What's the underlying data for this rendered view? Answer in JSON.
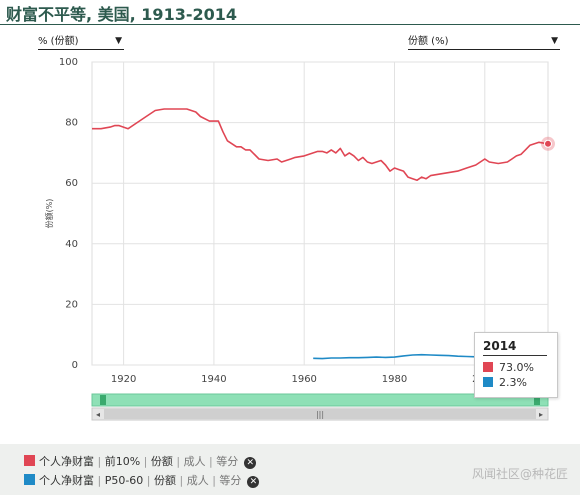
{
  "header": {
    "title": "财富不平等, 美国, 1913-2014"
  },
  "controls": {
    "left_select": {
      "value": "% (份额)"
    },
    "right_select": {
      "value": "份额 (%)"
    }
  },
  "colors": {
    "series1": "#e04654",
    "series2": "#1f8ac6",
    "navigator_fill": "#8ee0b6",
    "title": "#2d5a4e"
  },
  "chart_data": {
    "type": "line",
    "title": "财富不平等, 美国, 1913-2014",
    "ylabel": "份额(%)",
    "xlabel": "",
    "xlim": [
      1913,
      2014
    ],
    "ylim": [
      0,
      100
    ],
    "yticks": [
      0,
      20,
      40,
      60,
      80,
      100
    ],
    "xticks": [
      1920,
      1940,
      1960,
      1980,
      2000
    ],
    "grid": true,
    "series": [
      {
        "name": "个人净财富 | 前10% | 份额 | 成人 | 等分",
        "x": [
          1913,
          1915,
          1917,
          1918,
          1919,
          1921,
          1923,
          1925,
          1927,
          1929,
          1931,
          1933,
          1934,
          1936,
          1937,
          1939,
          1941,
          1942,
          1943,
          1944,
          1945,
          1946,
          1947,
          1948,
          1950,
          1952,
          1954,
          1955,
          1957,
          1958,
          1960,
          1962,
          1963,
          1964,
          1965,
          1966,
          1967,
          1968,
          1969,
          1970,
          1971,
          1972,
          1973,
          1974,
          1975,
          1976,
          1977,
          1978,
          1979,
          1980,
          1981,
          1982,
          1983,
          1984,
          1985,
          1986,
          1987,
          1988,
          1990,
          1992,
          1994,
          1996,
          1998,
          1999,
          2000,
          2001,
          2003,
          2005,
          2006,
          2007,
          2008,
          2009,
          2010,
          2012,
          2014
        ],
        "y": [
          78,
          78,
          78.5,
          79,
          79,
          78,
          80,
          82,
          84,
          84.5,
          84.5,
          84.5,
          84.5,
          83.5,
          82,
          80.5,
          80.5,
          77,
          74,
          73,
          72,
          72,
          71,
          71,
          68,
          67.5,
          68,
          67,
          68,
          68.5,
          69,
          70,
          70.5,
          70.5,
          70,
          71,
          70,
          71.5,
          69,
          70,
          69,
          67.5,
          68.5,
          67,
          66.5,
          67,
          67.5,
          66,
          64,
          65,
          64.5,
          64,
          62,
          61.5,
          61,
          62,
          61.5,
          62.5,
          63,
          63.5,
          64,
          65,
          66,
          67,
          68,
          67,
          66.5,
          67,
          68,
          69,
          69.5,
          71,
          72.5,
          73.5,
          73
        ]
      },
      {
        "name": "个人净财富 | P50-60 | 份额 | 成人 | 等分",
        "x": [
          1962,
          1964,
          1966,
          1968,
          1970,
          1972,
          1974,
          1976,
          1978,
          1980,
          1982,
          1984,
          1986,
          1988,
          1990,
          1992,
          1994,
          1996,
          1998,
          2000,
          2002,
          2004,
          2006,
          2008,
          2010,
          2012,
          2014
        ],
        "y": [
          2.2,
          2.1,
          2.3,
          2.3,
          2.4,
          2.4,
          2.5,
          2.6,
          2.5,
          2.6,
          3.0,
          3.3,
          3.4,
          3.3,
          3.2,
          3.1,
          2.9,
          2.8,
          2.7,
          2.7,
          2.6,
          2.6,
          2.5,
          2.3,
          2.2,
          2.3,
          2.3
        ]
      }
    ],
    "tooltip": {
      "year": "2014",
      "entries": [
        {
          "value": "73.0%"
        },
        {
          "value": "2.3%"
        }
      ]
    }
  },
  "legend": [
    {
      "parts": [
        "个人净财富",
        "前10%",
        "份额",
        "成人",
        "等分"
      ]
    },
    {
      "parts": [
        "个人净财富",
        "P50-60",
        "份额",
        "成人",
        "等分"
      ]
    }
  ],
  "watermark": "风闻社区@种花匠"
}
